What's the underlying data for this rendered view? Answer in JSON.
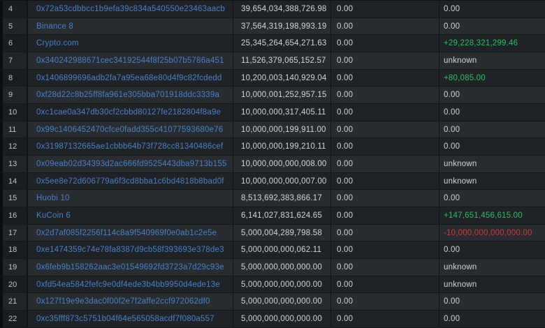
{
  "page": {
    "background": "#17191c"
  },
  "colors": {
    "row_dark": "#1f2227",
    "row_light": "#282c31",
    "index_col_dark": "#191c20",
    "index_col_light": "#212429",
    "link_blue": "#4d7fc3",
    "value_text": "#d2d5d8",
    "positive_green": "#2fbd63",
    "negative_red": "#cb3a3a"
  },
  "table": {
    "rows": [
      {
        "rank": "4",
        "name": "0x72a53cdbbcc1b9efa39c834a540550e23463aacb",
        "balance": "39,654,034,388,726.98",
        "col4": "0.00",
        "change": "0.00",
        "change_kind": "neutral"
      },
      {
        "rank": "5",
        "name": "Binance 8",
        "balance": "37,564,319,198,993.19",
        "col4": "0.00",
        "change": "0.00",
        "change_kind": "neutral"
      },
      {
        "rank": "6",
        "name": "Crypto.com",
        "balance": "25,345,264,654,271.63",
        "col4": "0.00",
        "change": "+29,228,321,299.46",
        "change_kind": "positive"
      },
      {
        "rank": "7",
        "name": "0x340242988671cec34192544f8f25b07b5786a451",
        "balance": "11,526,379,065,152.57",
        "col4": "0.00",
        "change": "unknown",
        "change_kind": "neutral"
      },
      {
        "rank": "8",
        "name": "0x1406899696adb2fa7a95ea68e80d4f9c82fcdedd",
        "balance": "10,200,003,140,929.04",
        "col4": "0.00",
        "change": "+80,085.00",
        "change_kind": "positive"
      },
      {
        "rank": "9",
        "name": "0xf28d22c8b25ff8fa961e305bba701918ddc3339a",
        "balance": "10,000,001,252,957.15",
        "col4": "0.00",
        "change": "0.00",
        "change_kind": "neutral"
      },
      {
        "rank": "10",
        "name": "0xc1cae0a347db30cf2cbbd80127fe2182804f8a9e",
        "balance": "10,000,000,317,405.11",
        "col4": "0.00",
        "change": "0.00",
        "change_kind": "neutral"
      },
      {
        "rank": "11",
        "name": "0x99c1406452470cfce0fadd355c41077593680e76",
        "balance": "10,000,000,199,911.00",
        "col4": "0.00",
        "change": "0.00",
        "change_kind": "neutral"
      },
      {
        "rank": "12",
        "name": "0x31987132665ae1cbbb64b73f728cc81340486cef",
        "balance": "10,000,000,199,210.11",
        "col4": "0.00",
        "change": "0.00",
        "change_kind": "neutral"
      },
      {
        "rank": "13",
        "name": "0x09eab02d34393d2ac666fd9525443dba9713b155",
        "balance": "10,000,000,000,008.00",
        "col4": "0.00",
        "change": "unknown",
        "change_kind": "neutral"
      },
      {
        "rank": "14",
        "name": "0x5ee8e72d606779a6f3cd8bba1c6bd4818b8bad0f",
        "balance": "10,000,000,000,007.00",
        "col4": "0.00",
        "change": "unknown",
        "change_kind": "neutral"
      },
      {
        "rank": "15",
        "name": "Huobi 10",
        "balance": "8,513,692,383,866.17",
        "col4": "0.00",
        "change": "0.00",
        "change_kind": "neutral"
      },
      {
        "rank": "16",
        "name": "KuCoin 6",
        "balance": "6,141,027,831,624.65",
        "col4": "0.00",
        "change": "+147,651,456,615.00",
        "change_kind": "positive"
      },
      {
        "rank": "17",
        "name": "0x2d7af085f2256f114c8a9f540969f0e0ab1c2e5e",
        "balance": "5,000,004,289,798.58",
        "col4": "0.00",
        "change": "-10,000,000,000,000.00",
        "change_kind": "negative"
      },
      {
        "rank": "18",
        "name": "0xe1474359c74e78fa8387d9cb58f393693e378de3",
        "balance": "5,000,000,000,062.11",
        "col4": "0.00",
        "change": "0.00",
        "change_kind": "neutral"
      },
      {
        "rank": "19",
        "name": "0x6feb9b158262aac3e01549692fd3723a7d29c93e",
        "balance": "5,000,000,000,000.00",
        "col4": "0.00",
        "change": "unknown",
        "change_kind": "neutral"
      },
      {
        "rank": "20",
        "name": "0xfd54ea5842fefc9e0df4ede3b4bb9950d4ede13e",
        "balance": "5,000,000,000,000.00",
        "col4": "0.00",
        "change": "unknown",
        "change_kind": "neutral"
      },
      {
        "rank": "21",
        "name": "0x127f19e9e3dac0f00f2e7f2affe2ccf972062df0",
        "balance": "5,000,000,000,000.00",
        "col4": "0.00",
        "change": "0.00",
        "change_kind": "neutral"
      },
      {
        "rank": "22",
        "name": "0xc35fff873c5751b04f64e565058acdf7f080a557",
        "balance": "5,000,000,000,000.00",
        "col4": "0.00",
        "change": "0.00",
        "change_kind": "neutral"
      }
    ]
  }
}
